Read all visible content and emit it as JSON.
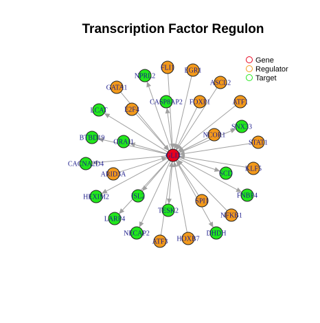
{
  "title": "Transcription Factor Regulon",
  "legend": [
    {
      "label": "Gene",
      "color": "#e8001c"
    },
    {
      "label": "Regulator",
      "color": "#f39a1b"
    },
    {
      "label": "Target",
      "color": "#22e81c"
    }
  ],
  "center": {
    "label": "GLI3",
    "type": "gene"
  },
  "regulators": [
    "FLI1",
    "EGR1",
    "ASCL2",
    "ATF1",
    "FOXP1",
    "GATA1",
    "E2F4",
    "NCOR1",
    "STAT1",
    "KLF5",
    "ARID3A",
    "SPI1",
    "NFKB1",
    "HOXB7",
    "ATF3"
  ],
  "targets": [
    "NPRL2",
    "CASP8AP2",
    "LCAT",
    "SNX33",
    "BTBD19",
    "ORAI1",
    "CACNA2D4",
    "SCD",
    "FNBP4",
    "HEXIM2",
    "ISL2",
    "TESK2",
    "LARP4",
    "NECAP2",
    "DHDH"
  ]
}
